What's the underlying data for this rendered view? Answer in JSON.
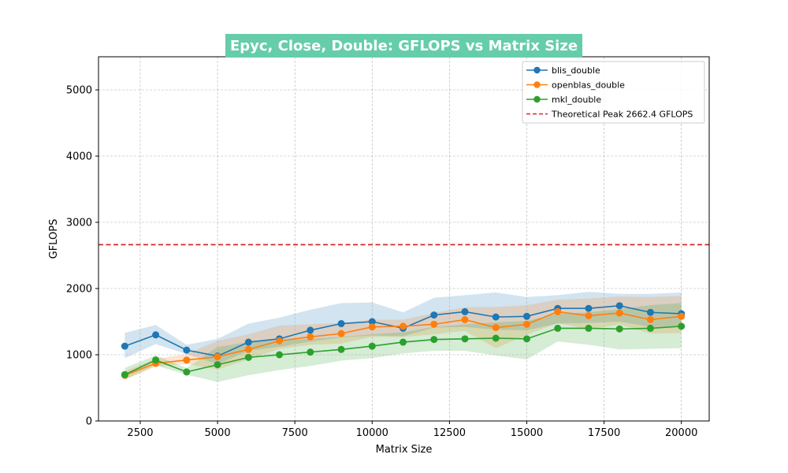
{
  "chart_data": {
    "type": "line",
    "title": "Epyc, Close, Double: GFLOPS vs Matrix Size",
    "title_bg_color": "#66cdaa",
    "xlabel": "Matrix Size",
    "ylabel": "GFLOPS",
    "xlim": [
      1150,
      20900
    ],
    "ylim": [
      0,
      5500
    ],
    "xticks": [
      2500,
      5000,
      7500,
      10000,
      12500,
      15000,
      17500,
      20000
    ],
    "yticks": [
      0,
      1000,
      2000,
      3000,
      4000,
      5000
    ],
    "grid": true,
    "legend_position": "top-right",
    "x": [
      2000,
      3000,
      4000,
      5000,
      6000,
      7000,
      8000,
      9000,
      10000,
      11000,
      12000,
      13000,
      14000,
      15000,
      16000,
      17000,
      18000,
      19000,
      20000
    ],
    "series": [
      {
        "name": "blis_double",
        "color": "#1f77b4",
        "values": [
          1130,
          1300,
          1070,
          980,
          1190,
          1240,
          1370,
          1470,
          1500,
          1400,
          1600,
          1650,
          1570,
          1580,
          1700,
          1700,
          1740,
          1640,
          1620
        ],
        "lower": [
          950,
          1160,
          1010,
          860,
          1060,
          1120,
          1200,
          1260,
          1290,
          1280,
          1410,
          1420,
          1380,
          1370,
          1470,
          1480,
          1500,
          1420,
          1430
        ],
        "upper": [
          1330,
          1450,
          1150,
          1240,
          1470,
          1560,
          1680,
          1780,
          1790,
          1640,
          1860,
          1900,
          1940,
          1870,
          1900,
          1950,
          1920,
          1920,
          1940
        ]
      },
      {
        "name": "openblas_double",
        "color": "#ff7f0e",
        "values": [
          690,
          870,
          920,
          970,
          1080,
          1210,
          1270,
          1320,
          1420,
          1430,
          1460,
          1530,
          1410,
          1460,
          1650,
          1590,
          1630,
          1530,
          1580
        ]
      },
      {
        "name": "mkl_double",
        "color": "#2ca02c",
        "values": [
          700,
          920,
          740,
          850,
          960,
          1000,
          1040,
          1080,
          1130,
          1190,
          1230,
          1240,
          1250,
          1240,
          1400,
          1400,
          1390,
          1400,
          1430
        ]
      }
    ],
    "bands": [
      {
        "series": "openblas_double",
        "lower": [
          630,
          820,
          860,
          780,
          930,
          1090,
          1150,
          1170,
          1270,
          1270,
          1310,
          1360,
          1100,
          1300,
          1480,
          1380,
          1460,
          1320,
          1330
        ],
        "upper": [
          750,
          940,
          1010,
          1210,
          1310,
          1440,
          1460,
          1480,
          1530,
          1530,
          1630,
          1720,
          1720,
          1750,
          1830,
          1850,
          1880,
          1870,
          1890
        ]
      },
      {
        "series": "mkl_double",
        "lower": [
          620,
          840,
          700,
          590,
          690,
          770,
          830,
          910,
          950,
          1020,
          1060,
          1060,
          990,
          930,
          1200,
          1150,
          1080,
          1090,
          1100
        ],
        "upper": [
          800,
          990,
          800,
          1120,
          1190,
          1220,
          1240,
          1270,
          1310,
          1340,
          1420,
          1460,
          1490,
          1510,
          1620,
          1640,
          1690,
          1750,
          1780
        ]
      }
    ],
    "hline": {
      "y": 2662.4,
      "label": "Theoretical Peak 2662.4 GFLOPS",
      "color": "#d62728"
    }
  }
}
